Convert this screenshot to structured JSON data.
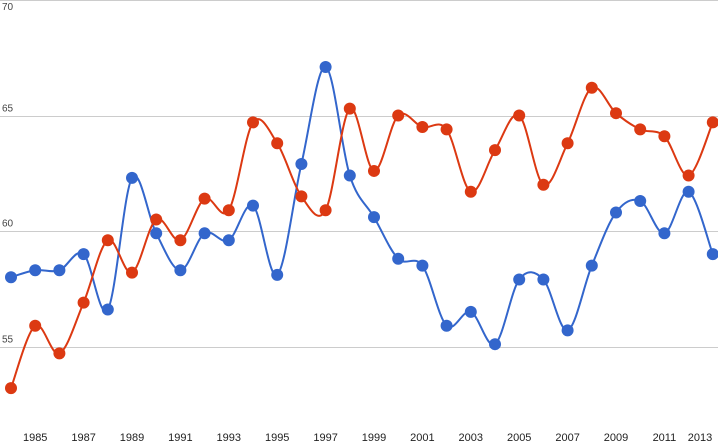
{
  "chart_data": {
    "type": "line",
    "title": "",
    "xlabel": "",
    "ylabel": "",
    "ylim": [
      50,
      70
    ],
    "y_ticks": [
      "55",
      "60",
      "65",
      "70"
    ],
    "x_ticks": [
      "1985",
      "1987",
      "1989",
      "1991",
      "1993",
      "1995",
      "1997",
      "1999",
      "2001",
      "2003",
      "2005",
      "2007",
      "2009",
      "2011",
      "2013"
    ],
    "x": [
      1984,
      1985,
      1986,
      1987,
      1988,
      1989,
      1990,
      1991,
      1992,
      1993,
      1994,
      1995,
      1996,
      1997,
      1998,
      1999,
      2000,
      2001,
      2002,
      2003,
      2004,
      2005,
      2006,
      2007,
      2008,
      2009,
      2010,
      2011,
      2012,
      2013
    ],
    "grid": true,
    "smooth": true,
    "series": [
      {
        "color": "#3366cc",
        "values": [
          58.0,
          58.3,
          58.3,
          59.0,
          56.6,
          62.3,
          59.9,
          58.3,
          59.9,
          59.6,
          61.1,
          58.1,
          62.9,
          67.1,
          62.4,
          60.6,
          58.8,
          58.5,
          55.9,
          56.5,
          55.1,
          57.9,
          57.9,
          55.7,
          58.5,
          60.8,
          61.3,
          59.9,
          61.7,
          59.0
        ]
      },
      {
        "color": "#dc3912",
        "values": [
          53.2,
          55.9,
          54.7,
          56.9,
          59.6,
          58.2,
          60.5,
          59.6,
          61.4,
          60.9,
          64.7,
          63.8,
          61.5,
          60.9,
          65.3,
          62.6,
          65.0,
          64.5,
          64.4,
          61.7,
          63.5,
          65.0,
          62.0,
          63.8,
          66.2,
          65.1,
          64.4,
          64.1,
          62.4,
          64.7
        ]
      }
    ]
  }
}
